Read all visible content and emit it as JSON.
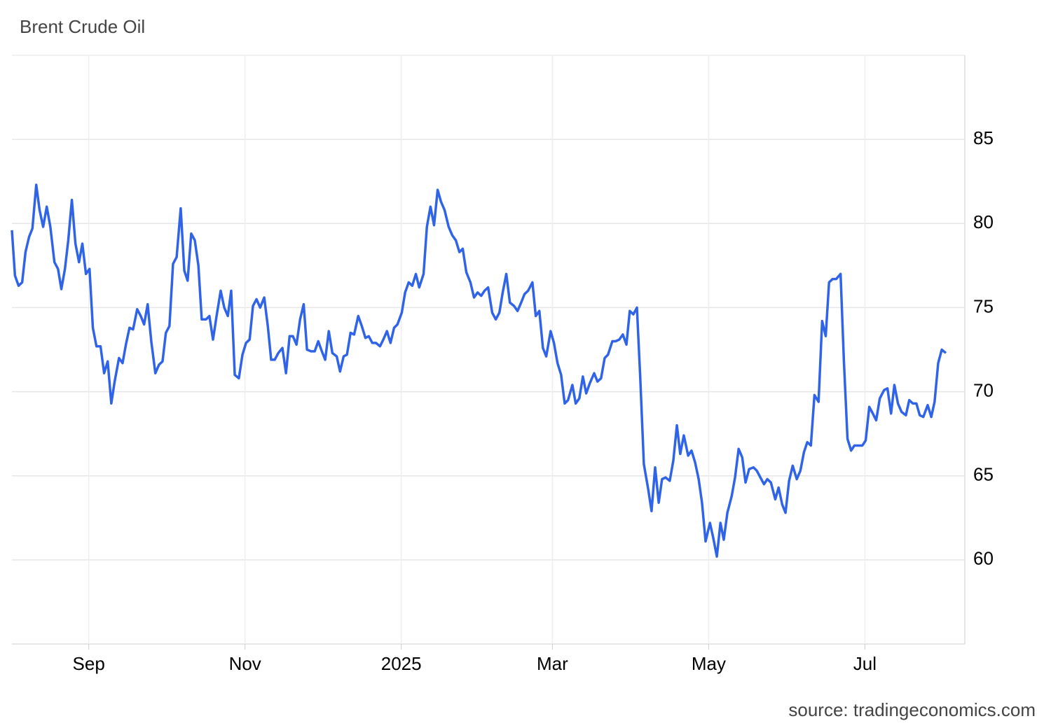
{
  "chart_data": {
    "type": "line",
    "title": "Brent Crude Oil",
    "source": "source: tradingeconomics.com",
    "color": "#2f63e8",
    "grid": true,
    "xlim": [
      0,
      372
    ],
    "ylim": [
      55,
      90
    ],
    "xticks": [
      {
        "value": 30,
        "label": "Sep"
      },
      {
        "value": 91,
        "label": "Nov"
      },
      {
        "value": 152,
        "label": "2025"
      },
      {
        "value": 211,
        "label": "Mar"
      },
      {
        "value": 272,
        "label": "May"
      },
      {
        "value": 333,
        "label": "Jul"
      }
    ],
    "yticks": [
      60,
      65,
      70,
      75,
      80,
      85
    ],
    "x": [
      0,
      1.2,
      2.6,
      4,
      5.3,
      6.7,
      8,
      9.5,
      10.8,
      12.2,
      13.6,
      15,
      16.6,
      18,
      19.3,
      20.7,
      22,
      23.4,
      24.8,
      26.2,
      27.5,
      28.9,
      30.3,
      31.6,
      33,
      34.6,
      36,
      37.4,
      38.8,
      40.1,
      41.8,
      43.2,
      44.5,
      45.9,
      47.3,
      48.9,
      50.3,
      51.6,
      53,
      54.4,
      56,
      57.4,
      58.8,
      60.1,
      61.5,
      62.9,
      64.3,
      65.9,
      67.3,
      68.6,
      70,
      71.4,
      72.8,
      74.1,
      75.8,
      77.1,
      78.5,
      79.9,
      81.5,
      82.9,
      84.3,
      85.6,
      87,
      88.6,
      90,
      91.4,
      92.8,
      94.1,
      95.5,
      96.9,
      98.5,
      99.9,
      101.2,
      102.6,
      104,
      105.6,
      107,
      108.4,
      109.7,
      111.1,
      112.5,
      113.9,
      115.2,
      116.8,
      118.2,
      119.6,
      121,
      122.3,
      123.7,
      125.1,
      126.8,
      128.1,
      129.5,
      130.8,
      132.2,
      133.6,
      135.2,
      136.6,
      138,
      139.3,
      140.7,
      142.1,
      143.7,
      145,
      146.4,
      147.8,
      149.2,
      150.5,
      152.2,
      153.5,
      154.9,
      156.3,
      157.7,
      159,
      160.7,
      162,
      163.4,
      164.8,
      166.2,
      167.5,
      168.9,
      170.5,
      171.9,
      173.3,
      174.7,
      176,
      177.4,
      179,
      180.4,
      181.8,
      183.2,
      184.5,
      185.9,
      187.5,
      188.9,
      190.3,
      191.6,
      193,
      194.4,
      196,
      197.4,
      198.8,
      200.1,
      201.5,
      203.2,
      204.5,
      205.9,
      207.3,
      208.6,
      210.3,
      211.6,
      213,
      214.4,
      215.8,
      217.1,
      218.8,
      220.1,
      221.5,
      222.9,
      224.2,
      225.6,
      227.3,
      228.6,
      230,
      231.4,
      232.7,
      234.4,
      235.7,
      237.1,
      238.5,
      239.9,
      241.2,
      242.6,
      244,
      245.3,
      246.7,
      248.4,
      249.7,
      251.1,
      252.5,
      253.8,
      255.2,
      256.8,
      258.2,
      259.6,
      260.9,
      262.3,
      264,
      265.3,
      266.7,
      268.1,
      269.4,
      270.8,
      272.5,
      273.8,
      275.2,
      276.6,
      277.9,
      279.3,
      281,
      282.3,
      283.7,
      285.1,
      286.4,
      287.8,
      289.5,
      290.8,
      292.2,
      293.6,
      294.9,
      296.3,
      298,
      299.3,
      300.7,
      302,
      303.4,
      304.8,
      306.4,
      307.8,
      309.2,
      310.5,
      311.9,
      313.3,
      314.9,
      316.3,
      317.7,
      319,
      320.4,
      321.8,
      323.5,
      324.8,
      326.2,
      327.6,
      328.9,
      330.3,
      332,
      333.3,
      334.7,
      336.1,
      337.4,
      338.8,
      340.5,
      341.8,
      343.2,
      344.5,
      345.9,
      347.3,
      349,
      350.3,
      351.7,
      353.1,
      354.4,
      355.8,
      357.5,
      358.9,
      360.2,
      361.6,
      363,
      364.6
    ],
    "values": [
      79.6,
      76.9,
      76.3,
      76.5,
      78.3,
      79.2,
      79.7,
      82.3,
      80.8,
      79.8,
      81.0,
      79.8,
      77.7,
      77.3,
      76.1,
      77.3,
      79.0,
      81.4,
      78.8,
      77.7,
      78.8,
      77.0,
      77.3,
      73.8,
      72.7,
      72.7,
      71.1,
      71.8,
      69.3,
      70.6,
      72.0,
      71.7,
      72.8,
      73.8,
      73.7,
      74.9,
      74.5,
      74.0,
      75.2,
      73.0,
      71.1,
      71.6,
      71.8,
      73.5,
      73.9,
      77.6,
      78.0,
      80.9,
      77.2,
      76.6,
      79.4,
      79.0,
      77.5,
      74.3,
      74.3,
      74.5,
      73.1,
      74.5,
      76.0,
      75.0,
      74.5,
      76.0,
      71.0,
      70.8,
      72.2,
      72.9,
      73.1,
      75.1,
      75.5,
      75.0,
      75.6,
      73.9,
      71.9,
      71.9,
      72.3,
      72.6,
      71.1,
      73.3,
      73.3,
      72.8,
      74.3,
      75.2,
      72.5,
      72.4,
      72.4,
      73.0,
      72.4,
      71.9,
      73.6,
      72.3,
      72.1,
      71.2,
      72.1,
      72.2,
      73.5,
      73.4,
      74.5,
      73.9,
      73.2,
      73.3,
      72.9,
      72.9,
      72.7,
      73.1,
      73.6,
      72.9,
      73.8,
      74.0,
      74.7,
      75.9,
      76.5,
      76.3,
      77.0,
      76.2,
      77.0,
      79.8,
      81.0,
      79.9,
      82.0,
      81.3,
      80.8,
      79.8,
      79.3,
      79.0,
      78.3,
      78.5,
      77.1,
      76.5,
      75.6,
      75.9,
      75.7,
      76.0,
      76.2,
      74.7,
      74.3,
      74.7,
      75.9,
      77.0,
      75.3,
      75.1,
      74.8,
      75.3,
      75.8,
      76.0,
      76.5,
      74.5,
      74.8,
      72.6,
      72.1,
      73.6,
      72.9,
      71.7,
      71.0,
      69.3,
      69.5,
      70.4,
      69.3,
      69.6,
      70.9,
      69.9,
      70.5,
      71.1,
      70.6,
      70.8,
      72.0,
      72.2,
      73.0,
      73.0,
      73.1,
      73.4,
      72.8,
      74.8,
      74.6,
      75.0,
      70.8,
      65.7,
      64.2,
      62.9,
      65.5,
      63.4,
      64.8,
      64.9,
      64.7,
      65.9,
      68.0,
      66.3,
      67.4,
      66.2,
      66.5,
      65.8,
      64.8,
      63.4,
      61.1,
      62.2,
      61.3,
      60.2,
      62.2,
      61.2,
      62.8,
      63.8,
      64.9,
      66.6,
      66.1,
      64.6,
      65.4,
      65.5,
      65.3,
      64.9,
      64.5,
      64.8,
      64.6,
      63.6,
      64.3,
      63.3,
      62.8,
      64.7,
      65.6,
      64.8,
      65.3,
      66.4,
      67.0,
      66.8,
      69.8,
      69.4,
      74.2,
      73.3,
      76.5,
      76.7,
      76.7,
      77.0,
      71.8,
      67.2,
      66.5,
      66.8,
      66.8,
      66.8,
      67.1,
      69.1,
      68.7,
      68.3,
      69.6,
      70.1,
      70.2,
      68.7,
      70.4,
      69.3,
      68.8,
      68.6,
      69.5,
      69.3,
      69.3,
      68.6,
      68.5,
      69.2,
      68.5,
      69.4,
      71.7,
      72.5,
      72.3
    ]
  }
}
